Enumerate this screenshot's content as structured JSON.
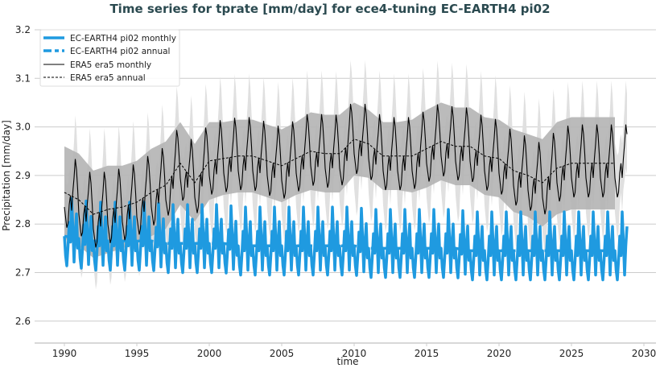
{
  "chart_data": {
    "type": "line",
    "title": "Time series for tprate [mm/day] for ece4-tuning EC-EARTH4 pi02",
    "xlabel": "time",
    "ylabel": "Precipitation [mm/day]",
    "xlim": [
      1988,
      2031
    ],
    "ylim": [
      2.575,
      3.2
    ],
    "xticks": [
      "1990",
      "1995",
      "2000",
      "2005",
      "2010",
      "2015",
      "2020",
      "2025",
      "2030"
    ],
    "yticks": [
      "2.6",
      "2.7",
      "2.8",
      "2.9",
      "3.0",
      "3.1",
      "3.2"
    ],
    "grid": "horizontal",
    "legend_position": "top-left",
    "colors": {
      "ecearth": "#1f9ae0",
      "era5": "#000000",
      "band_annual": "#b4b4b4",
      "band_monthly": "#e0e0e0",
      "title": "#2b4a50"
    },
    "legend": [
      {
        "label": "EC-EARTH4 pi02 monthly",
        "style": "solid-thick-blue"
      },
      {
        "label": "EC-EARTH4 pi02 annual",
        "style": "dashed-thick-blue"
      },
      {
        "label": "ERA5 era5 monthly",
        "style": "solid-black"
      },
      {
        "label": "ERA5 era5 annual",
        "style": "dashed-black"
      }
    ],
    "years": [
      1990,
      1991,
      1992,
      1993,
      1994,
      1995,
      1996,
      1997,
      1998,
      1999,
      2000,
      2001,
      2002,
      2003,
      2004,
      2005,
      2006,
      2007,
      2008,
      2009,
      2010,
      2011,
      2012,
      2013,
      2014,
      2015,
      2016,
      2017,
      2018,
      2019,
      2020,
      2021,
      2022,
      2023,
      2024,
      2025,
      2026,
      2027,
      2028
    ],
    "era5_annual": [
      2.865,
      2.85,
      2.82,
      2.83,
      2.835,
      2.845,
      2.865,
      2.88,
      2.925,
      2.885,
      2.93,
      2.935,
      2.94,
      2.94,
      2.93,
      2.92,
      2.935,
      2.95,
      2.945,
      2.945,
      2.975,
      2.965,
      2.94,
      2.94,
      2.94,
      2.955,
      2.97,
      2.96,
      2.96,
      2.94,
      2.935,
      2.91,
      2.9,
      2.885,
      2.915,
      2.925,
      2.925,
      2.925,
      2.925
    ],
    "era5_annual_std": [
      0.095,
      0.095,
      0.09,
      0.09,
      0.085,
      0.085,
      0.09,
      0.09,
      0.085,
      0.08,
      0.08,
      0.075,
      0.075,
      0.075,
      0.075,
      0.075,
      0.075,
      0.08,
      0.08,
      0.08,
      0.075,
      0.07,
      0.07,
      0.07,
      0.075,
      0.08,
      0.08,
      0.08,
      0.08,
      0.08,
      0.08,
      0.085,
      0.085,
      0.09,
      0.095,
      0.095,
      0.095,
      0.095,
      0.095
    ],
    "era5_seasonal_anomaly": [
      -0.03,
      -0.05,
      -0.07,
      -0.06,
      -0.02,
      0.0,
      -0.03,
      0.01,
      0.04,
      0.08,
      0.06,
      0.02
    ],
    "era5_monthly_std": 0.06,
    "ecearth_annual": [
      2.775,
      2.77,
      2.765,
      2.765,
      2.765,
      2.765,
      2.765,
      2.76,
      2.76,
      2.76,
      2.76,
      2.76,
      2.755,
      2.755,
      2.755,
      2.755,
      2.755,
      2.755,
      2.755,
      2.755,
      2.755,
      2.75,
      2.75,
      2.75,
      2.75,
      2.75,
      2.75,
      2.75,
      2.745,
      2.745,
      2.745,
      2.745,
      2.745,
      2.745,
      2.745,
      2.745,
      2.745,
      2.745,
      2.745
    ],
    "ecearth_seasonal_anomaly": [
      0.0,
      -0.04,
      -0.06,
      -0.02,
      0.03,
      -0.01,
      0.08,
      0.02,
      -0.05,
      0.01,
      0.05,
      -0.02
    ]
  }
}
